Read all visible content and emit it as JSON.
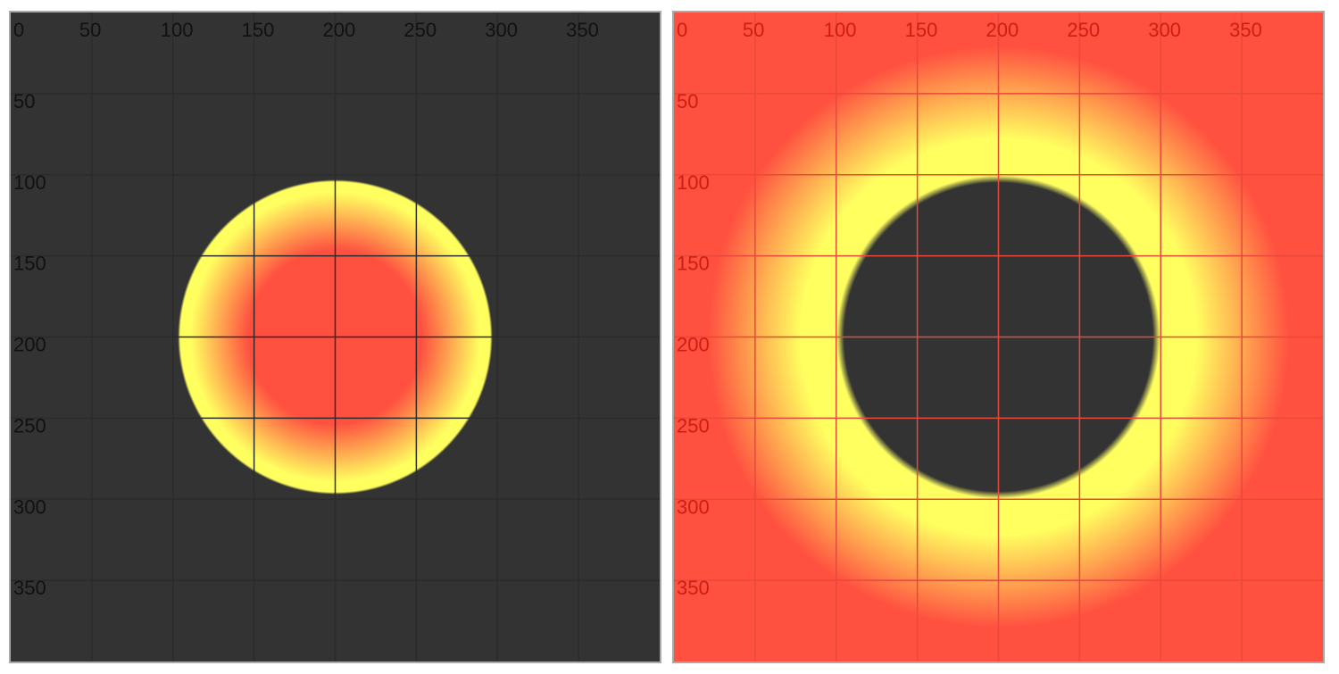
{
  "panels": [
    {
      "id": "left",
      "background": "#333333",
      "grid_color": "#2b2b2b",
      "label_color": "#111111",
      "x_ticks": [
        "0",
        "50",
        "100",
        "150",
        "200",
        "250",
        "300",
        "350"
      ],
      "y_ticks": [
        "50",
        "100",
        "150",
        "200",
        "250",
        "300",
        "350"
      ],
      "gradient": {
        "shape": "circle",
        "center": [
          200,
          200
        ],
        "radius": 97,
        "stops": [
          {
            "offset": 0.0,
            "color": "#ff5040",
            "opacity": 1
          },
          {
            "offset": 0.55,
            "color": "#ff5040",
            "opacity": 1
          },
          {
            "offset": 0.92,
            "color": "#ffff60",
            "opacity": 1
          },
          {
            "offset": 0.985,
            "color": "#ffff60",
            "opacity": 1
          },
          {
            "offset": 1.0,
            "color": "#ffff60",
            "opacity": 0
          }
        ]
      }
    },
    {
      "id": "right",
      "background": "#ff5040",
      "grid_color": "#e8493a",
      "label_color": "#cc1f14",
      "x_ticks": [
        "0",
        "50",
        "100",
        "150",
        "200",
        "250",
        "300",
        "350"
      ],
      "y_ticks": [
        "50",
        "100",
        "150",
        "200",
        "250",
        "300",
        "350"
      ],
      "gradient": {
        "shape": "ring",
        "center": [
          200,
          200
        ],
        "radius": 97,
        "stops": [
          {
            "offset": 0.0,
            "color": "#333333",
            "opacity": 1
          },
          {
            "offset": 0.53,
            "color": "#333333",
            "opacity": 1
          },
          {
            "offset": 0.555,
            "color": "#ffff60",
            "opacity": 1
          },
          {
            "offset": 0.68,
            "color": "#ffff60",
            "opacity": 1
          },
          {
            "offset": 1.0,
            "color": "#ff5040",
            "opacity": 1
          }
        ]
      }
    }
  ]
}
